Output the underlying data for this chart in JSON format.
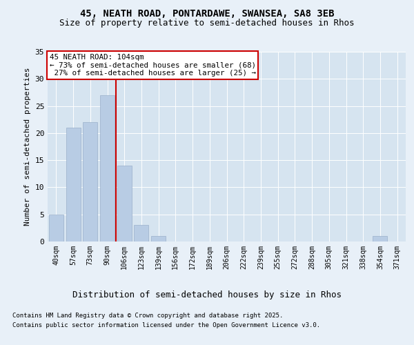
{
  "title1": "45, NEATH ROAD, PONTARDAWE, SWANSEA, SA8 3EB",
  "title2": "Size of property relative to semi-detached houses in Rhos",
  "xlabel": "Distribution of semi-detached houses by size in Rhos",
  "ylabel": "Number of semi-detached properties",
  "categories": [
    "40sqm",
    "57sqm",
    "73sqm",
    "90sqm",
    "106sqm",
    "123sqm",
    "139sqm",
    "156sqm",
    "172sqm",
    "189sqm",
    "206sqm",
    "222sqm",
    "239sqm",
    "255sqm",
    "272sqm",
    "288sqm",
    "305sqm",
    "321sqm",
    "338sqm",
    "354sqm",
    "371sqm"
  ],
  "values": [
    5,
    21,
    22,
    27,
    14,
    3,
    1,
    0,
    0,
    0,
    0,
    0,
    0,
    0,
    0,
    0,
    0,
    0,
    0,
    1,
    0
  ],
  "bar_color": "#b8cce4",
  "bar_edge_color": "#9ab0ca",
  "red_line_x": 3.5,
  "highlight_line_label": "45 NEATH ROAD: 104sqm",
  "pct_smaller": 73,
  "pct_smaller_n": 68,
  "pct_larger": 27,
  "pct_larger_n": 25,
  "annotation_box_color": "#cc0000",
  "ylim": [
    0,
    35
  ],
  "yticks": [
    0,
    5,
    10,
    15,
    20,
    25,
    30,
    35
  ],
  "footnote1": "Contains HM Land Registry data © Crown copyright and database right 2025.",
  "footnote2": "Contains public sector information licensed under the Open Government Licence v3.0.",
  "bg_color": "#e8f0f8",
  "plot_bg_color": "#d6e4f0"
}
